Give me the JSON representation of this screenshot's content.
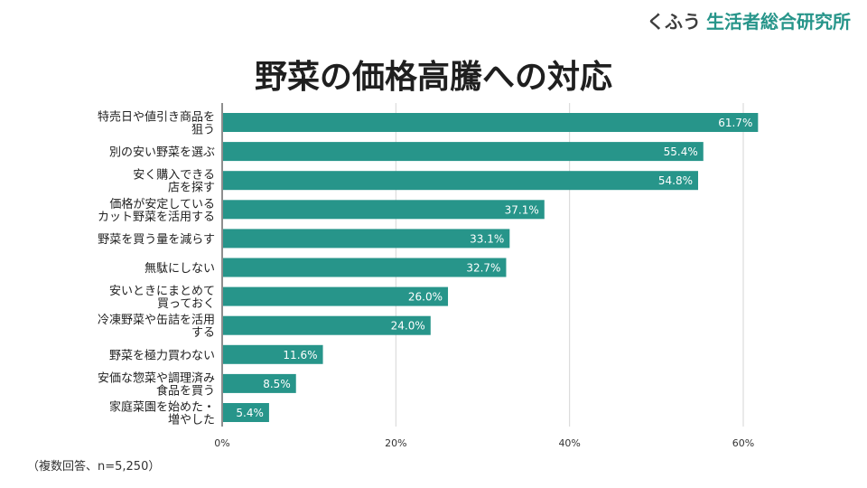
{
  "logo": {
    "part1": "くふう",
    "part2": "生活者総合研究所"
  },
  "title": "野菜の価格高騰への対応",
  "footnote": "（複数回答、n=5,250）",
  "colors": {
    "bar": "#27958a",
    "grid": "#d6d6d6",
    "axis": "#444444",
    "label_text": "#ffffff"
  },
  "chart_data": {
    "type": "bar",
    "orientation": "horizontal",
    "title": "野菜の価格高騰への対応",
    "categories": [
      [
        "特売日や値引き商品を",
        "狙う"
      ],
      [
        "別の安い野菜を選ぶ"
      ],
      [
        "安く購入できる",
        "店を探す"
      ],
      [
        "価格が安定している",
        "カット野菜を活用する"
      ],
      [
        "野菜を買う量を減らす"
      ],
      [
        "無駄にしない"
      ],
      [
        "安いときにまとめて",
        "買っておく"
      ],
      [
        "冷凍野菜や缶詰を活用",
        "する"
      ],
      [
        "野菜を極力買わない"
      ],
      [
        "安価な惣菜や調理済み",
        "食品を買う"
      ],
      [
        "家庭菜園を始めた・",
        "増やした"
      ]
    ],
    "values": [
      61.7,
      55.4,
      54.8,
      37.1,
      33.1,
      32.7,
      26.0,
      24.0,
      11.6,
      8.5,
      5.4
    ],
    "value_labels": [
      "61.7%",
      "55.4%",
      "54.8%",
      "37.1%",
      "33.1%",
      "32.7%",
      "26.0%",
      "24.0%",
      "11.6%",
      "8.5%",
      "5.4%"
    ],
    "xlim": [
      0,
      60
    ],
    "xticks": [
      0,
      20,
      40,
      60
    ],
    "xtick_labels": [
      "0%",
      "20%",
      "40%",
      "60%"
    ],
    "xlabel": "",
    "ylabel": "",
    "grid": true,
    "legend": "none"
  }
}
